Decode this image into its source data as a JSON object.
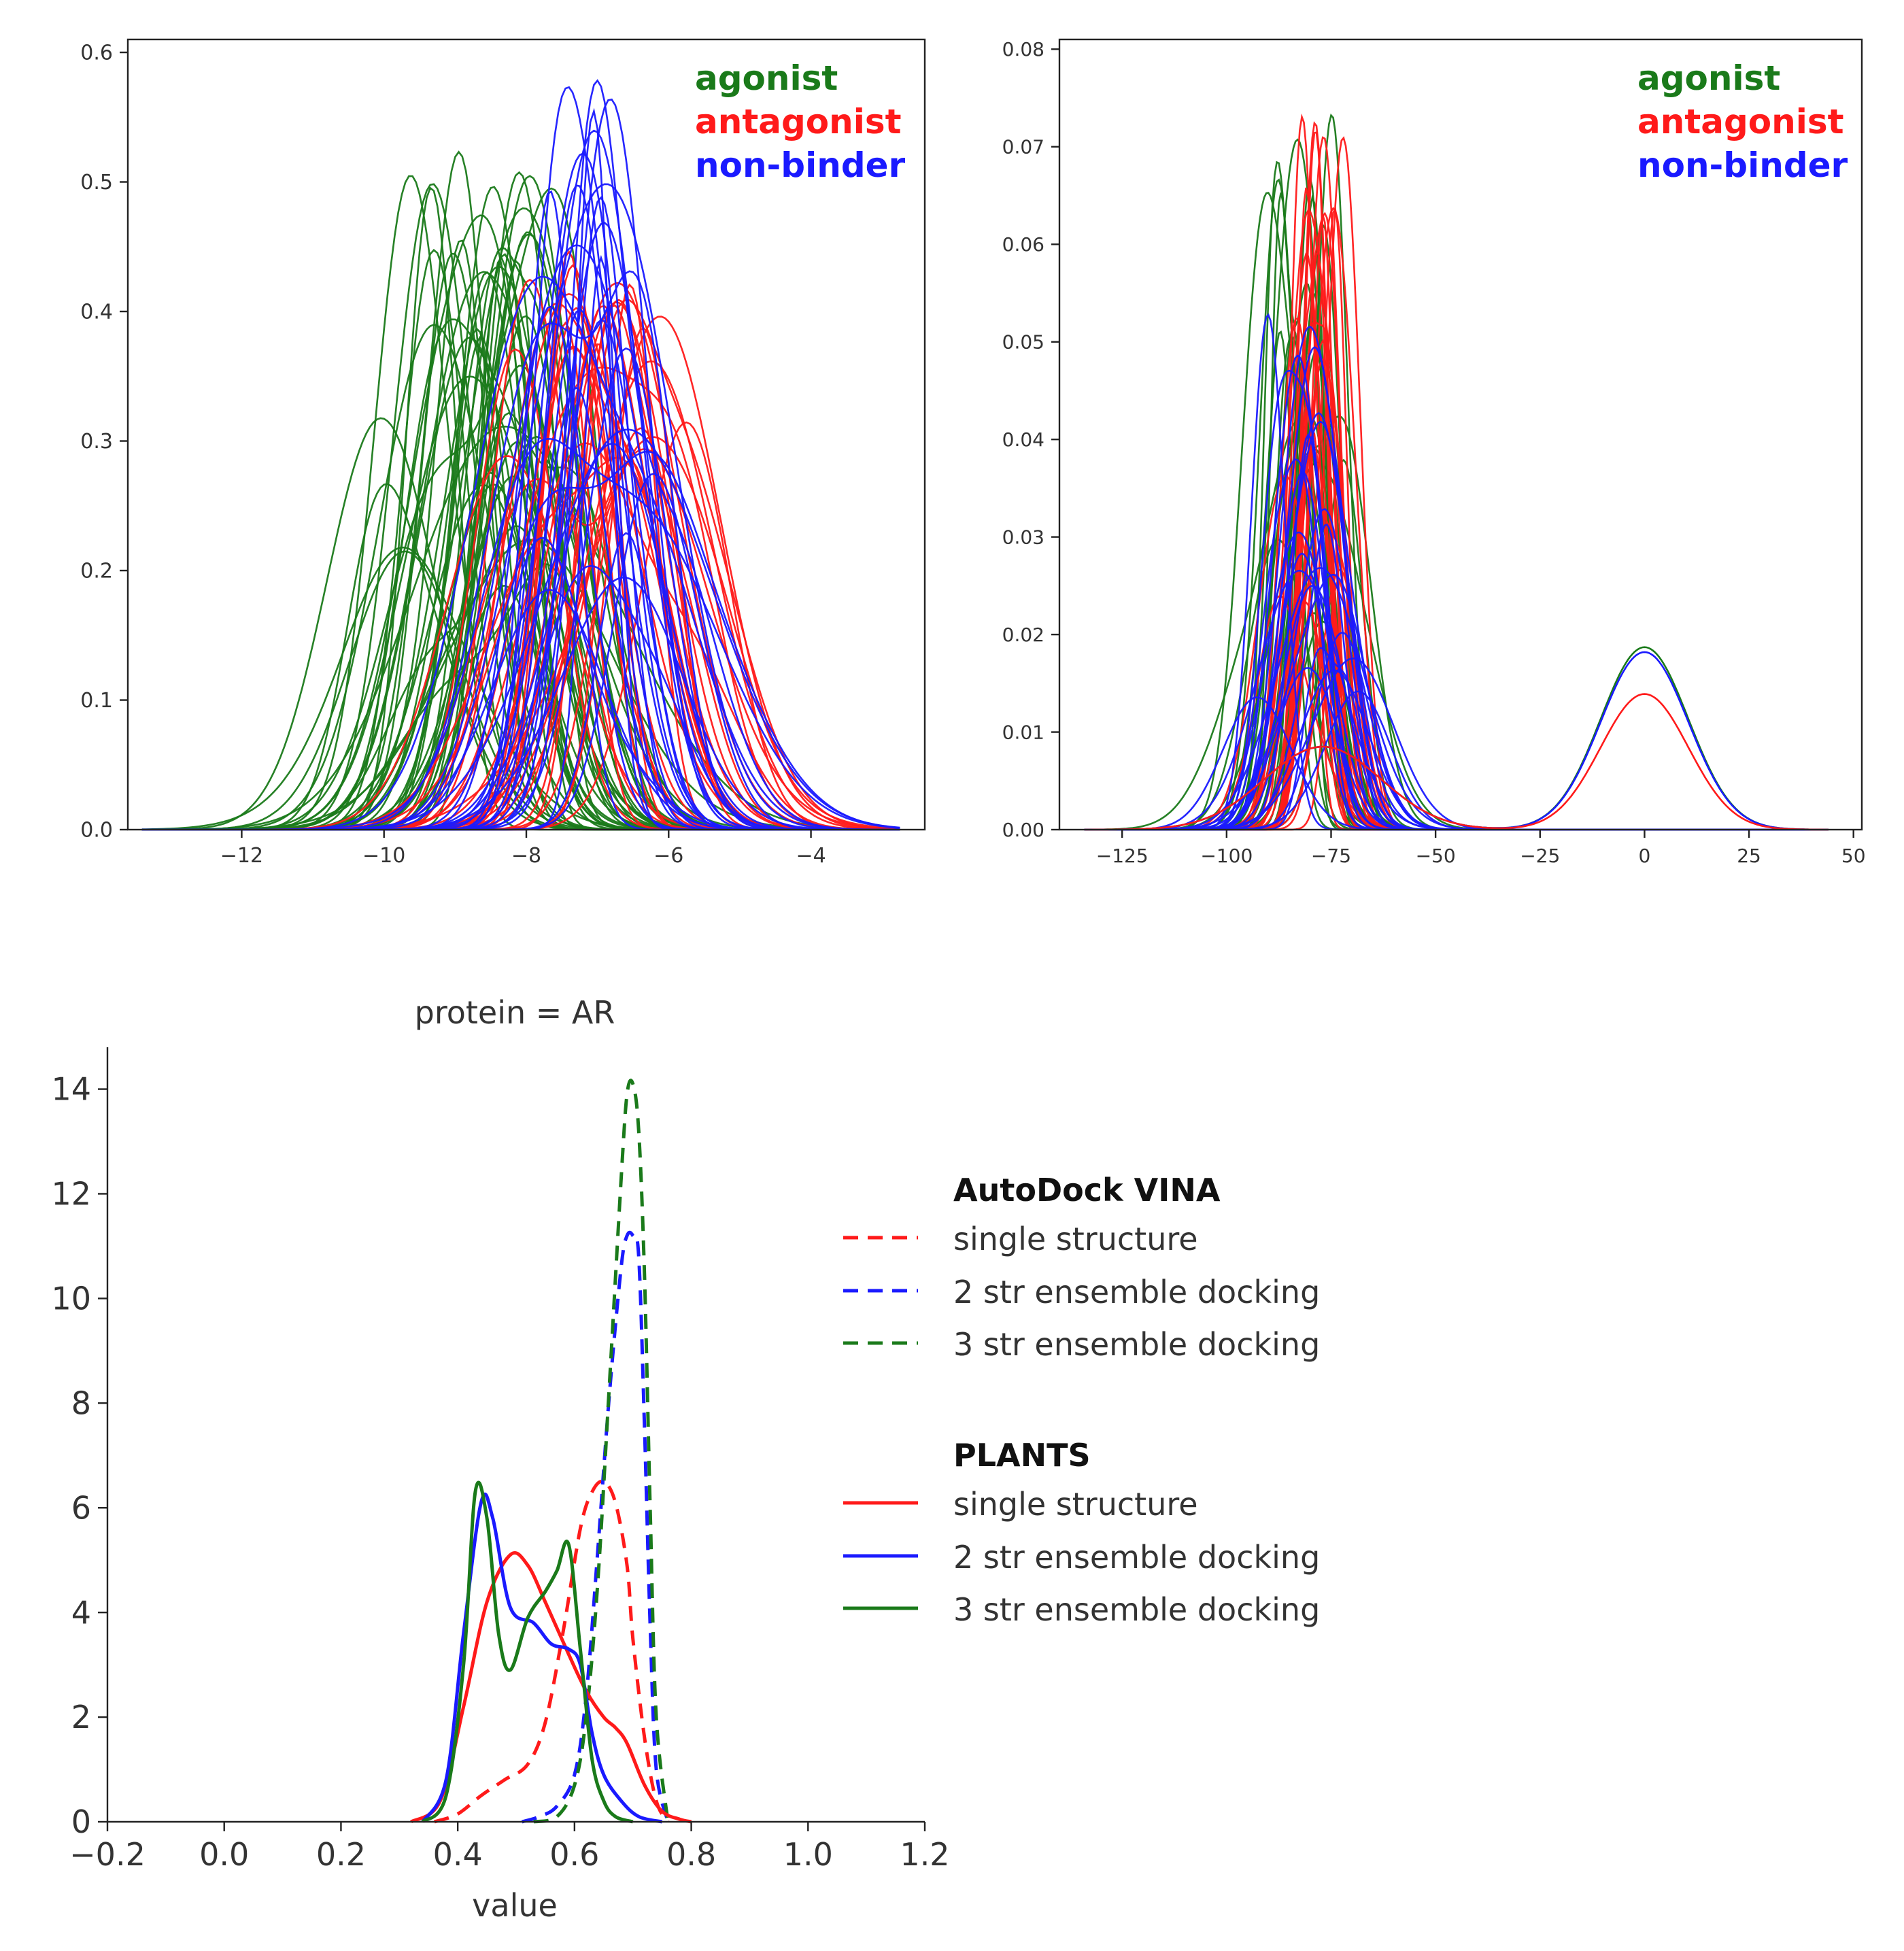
{
  "colors": {
    "agonist": "#1a7a1a",
    "antagonist": "#ff1a1a",
    "non_binder": "#1a1aff",
    "axis": "#222222"
  },
  "chart_data": [
    {
      "type": "line",
      "title": "",
      "xlabel": "",
      "ylabel": "",
      "xlim": [
        -13.6,
        -2.4
      ],
      "ylim": [
        0,
        0.61
      ],
      "xticks": [
        -12,
        -10,
        -8,
        -6,
        -4
      ],
      "xtick_labels": [
        "−12",
        "−10",
        "−8",
        "−6",
        "−4"
      ],
      "yticks": [
        0.0,
        0.1,
        0.2,
        0.3,
        0.4,
        0.5,
        0.6
      ],
      "ytick_labels": [
        "0.0",
        "0.1",
        "0.2",
        "0.3",
        "0.4",
        "0.5",
        "0.6"
      ],
      "grid": false,
      "legend": {
        "position": "top-right",
        "entries": [
          "agonist",
          "antagonist",
          "non-binder"
        ]
      },
      "groups": [
        {
          "name": "agonist",
          "color": "#1a7a1a",
          "count": 45,
          "peak_x": [
            -9.2,
            -8.0
          ],
          "peak_y": [
            0.18,
            0.53
          ],
          "sd": [
            0.7,
            1.3
          ]
        },
        {
          "name": "antagonist",
          "color": "#ff1a1a",
          "count": 30,
          "peak_x": [
            -7.6,
            -6.3
          ],
          "peak_y": [
            0.28,
            0.45
          ],
          "sd": [
            0.8,
            1.3
          ]
        },
        {
          "name": "non-binder",
          "color": "#1a1aff",
          "count": 30,
          "peak_x": [
            -7.5,
            -6.5
          ],
          "peak_y": [
            0.14,
            0.58
          ],
          "sd": [
            0.6,
            1.3
          ]
        }
      ]
    },
    {
      "type": "line",
      "title": "",
      "xlabel": "",
      "ylabel": "",
      "xlim": [
        -140,
        52
      ],
      "ylim": [
        0,
        0.081
      ],
      "xticks": [
        -125,
        -100,
        -75,
        -50,
        -25,
        0,
        25,
        50
      ],
      "xtick_labels": [
        "−125",
        "−100",
        "−75",
        "−50",
        "−25",
        "0",
        "25",
        "50"
      ],
      "yticks": [
        0.0,
        0.01,
        0.02,
        0.03,
        0.04,
        0.05,
        0.06,
        0.07,
        0.08
      ],
      "ytick_labels": [
        "0.00",
        "0.01",
        "0.02",
        "0.03",
        "0.04",
        "0.05",
        "0.06",
        "0.07",
        "0.08"
      ],
      "grid": false,
      "legend": {
        "position": "top-right",
        "entries": [
          "agonist",
          "antagonist",
          "non-binder"
        ]
      },
      "groups": [
        {
          "name": "agonist",
          "color": "#1a7a1a",
          "count": 25,
          "peak_x": [
            -85,
            -76
          ],
          "peak_y": [
            0.01,
            0.075
          ],
          "sd": [
            5,
            11
          ]
        },
        {
          "name": "antagonist",
          "color": "#ff1a1a",
          "count": 25,
          "peak_x": [
            -80,
            -75
          ],
          "peak_y": [
            0.017,
            0.078
          ],
          "sd": [
            4.5,
            9
          ]
        },
        {
          "name": "non-binder",
          "color": "#1a1aff",
          "count": 25,
          "peak_x": [
            -84,
            -74
          ],
          "peak_y": [
            0.008,
            0.054
          ],
          "sd": [
            7,
            13
          ]
        }
      ],
      "secondary_peaks": [
        {
          "name": "agonist",
          "color": "#1a7a1a",
          "x": 0,
          "y": 0.0187,
          "sd": 10.5
        },
        {
          "name": "non-binder",
          "color": "#1a1aff",
          "x": 0,
          "y": 0.0182,
          "sd": 10.5
        },
        {
          "name": "antagonist",
          "color": "#ff1a1a",
          "x": 0,
          "y": 0.0139,
          "sd": 10.5
        }
      ]
    },
    {
      "type": "line",
      "title": "protein = AR",
      "xlabel": "value",
      "ylabel": "",
      "xlim": [
        -0.2,
        1.2
      ],
      "ylim": [
        0,
        14.8
      ],
      "xticks": [
        -0.2,
        0.0,
        0.2,
        0.4,
        0.6,
        0.8,
        1.0,
        1.2
      ],
      "xtick_labels": [
        "−0.2",
        "0.0",
        "0.2",
        "0.4",
        "0.6",
        "0.8",
        "1.0",
        "1.2"
      ],
      "yticks": [
        0,
        2,
        4,
        6,
        8,
        10,
        12,
        14
      ],
      "ytick_labels": [
        "0",
        "2",
        "4",
        "6",
        "8",
        "10",
        "12",
        "14"
      ],
      "grid": false,
      "legend": {
        "position": "right",
        "groups": [
          {
            "title": "AutoDock VINA",
            "entries": [
              {
                "label": "single structure",
                "color": "#ff1a1a",
                "dash": true
              },
              {
                "label": "2 str ensemble docking",
                "color": "#1a1aff",
                "dash": true
              },
              {
                "label": "3 str ensemble docking",
                "color": "#1a7a1a",
                "dash": true
              }
            ]
          },
          {
            "title": "PLANTS",
            "entries": [
              {
                "label": "single structure",
                "color": "#ff1a1a",
                "dash": false
              },
              {
                "label": "2 str ensemble docking",
                "color": "#1a1aff",
                "dash": false
              },
              {
                "label": "3 str ensemble docking",
                "color": "#1a7a1a",
                "dash": false
              }
            ]
          }
        ]
      },
      "series": [
        {
          "name": "AutoDock VINA single structure",
          "color": "#ff1a1a",
          "dash": true,
          "x": [
            0.36,
            0.4,
            0.44,
            0.48,
            0.52,
            0.55,
            0.58,
            0.61,
            0.63,
            0.65,
            0.67,
            0.69,
            0.7,
            0.72,
            0.74,
            0.76
          ],
          "y": [
            0,
            0.15,
            0.5,
            0.8,
            1.1,
            1.9,
            3.6,
            5.6,
            6.3,
            6.5,
            6.1,
            4.9,
            3.5,
            1.6,
            0.4,
            0
          ]
        },
        {
          "name": "AutoDock VINA 2 str ensemble docking",
          "color": "#1a1aff",
          "dash": true,
          "x": [
            0.51,
            0.54,
            0.57,
            0.6,
            0.62,
            0.64,
            0.66,
            0.68,
            0.69,
            0.7,
            0.71,
            0.72,
            0.73,
            0.74,
            0.76
          ],
          "y": [
            0,
            0.1,
            0.3,
            0.9,
            2.4,
            5.2,
            8.2,
            10.6,
            11.2,
            11.2,
            10.8,
            7.5,
            3.6,
            1.0,
            0
          ]
        },
        {
          "name": "AutoDock VINA 3 str ensemble docking",
          "color": "#1a7a1a",
          "dash": true,
          "x": [
            0.53,
            0.57,
            0.6,
            0.62,
            0.64,
            0.66,
            0.68,
            0.69,
            0.7,
            0.71,
            0.72,
            0.73,
            0.74,
            0.76
          ],
          "y": [
            0,
            0.1,
            0.7,
            2.0,
            4.6,
            8.4,
            12.3,
            13.9,
            14.1,
            13.2,
            10.4,
            5.8,
            2.0,
            0
          ]
        },
        {
          "name": "PLANTS single structure",
          "color": "#ff1a1a",
          "dash": false,
          "x": [
            0.32,
            0.37,
            0.41,
            0.45,
            0.49,
            0.52,
            0.55,
            0.59,
            0.62,
            0.65,
            0.67,
            0.69,
            0.72,
            0.75,
            0.78,
            0.8
          ],
          "y": [
            0,
            0.4,
            2.2,
            4.2,
            5.1,
            4.9,
            4.2,
            3.2,
            2.5,
            2.0,
            1.8,
            1.5,
            0.7,
            0.2,
            0.05,
            0
          ]
        },
        {
          "name": "PLANTS 2 str ensemble docking",
          "color": "#1a1aff",
          "dash": false,
          "x": [
            0.34,
            0.38,
            0.41,
            0.44,
            0.46,
            0.49,
            0.53,
            0.56,
            0.59,
            0.61,
            0.63,
            0.65,
            0.68,
            0.71,
            0.75
          ],
          "y": [
            0,
            0.8,
            3.6,
            6.1,
            5.8,
            4.1,
            3.8,
            3.4,
            3.3,
            3.0,
            1.7,
            0.9,
            0.4,
            0.1,
            0
          ]
        },
        {
          "name": "PLANTS 3 str ensemble docking",
          "color": "#1a7a1a",
          "dash": false,
          "x": [
            0.34,
            0.38,
            0.41,
            0.43,
            0.45,
            0.47,
            0.49,
            0.52,
            0.55,
            0.57,
            0.59,
            0.61,
            0.63,
            0.65,
            0.67,
            0.7
          ],
          "y": [
            0,
            0.5,
            3.0,
            6.3,
            5.8,
            3.6,
            2.9,
            3.9,
            4.4,
            4.8,
            5.3,
            3.3,
            1.2,
            0.4,
            0.1,
            0
          ]
        }
      ]
    }
  ]
}
